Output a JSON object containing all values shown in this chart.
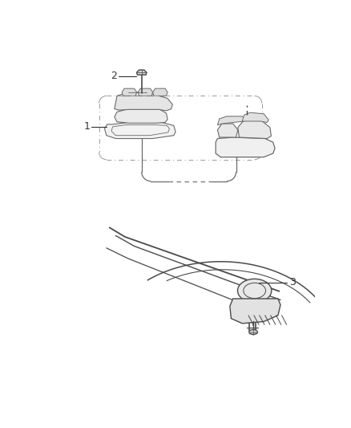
{
  "bg_color": "#ffffff",
  "lc": "#6a6a6a",
  "dc": "#4a4a4a",
  "lc_light": "#999999",
  "fig_width": 4.38,
  "fig_height": 5.33,
  "dpi": 100
}
